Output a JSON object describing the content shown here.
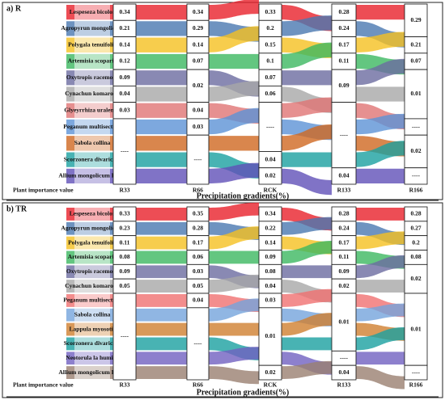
{
  "panels": [
    {
      "title": "a) R",
      "species": [
        "Lespeseza bicolor",
        "Agropyrun mongolicum",
        "Polygala tenuifolia",
        "Artemisia scoparia",
        "Oxytropis racemosa",
        "Cynachun komarovii",
        "Glyeyrrhiza uralensis",
        "Peganum multisectum",
        "Sabola collina",
        "Scorzonera divaricata",
        "Allium mongolicum Regel"
      ],
      "columns": [
        {
          "name": "R33",
          "values": [
            0.34,
            0.21,
            0.14,
            0.12,
            0.09,
            0.04,
            0.03,
            "----"
          ]
        },
        {
          "name": "R66",
          "values": [
            0.34,
            0.29,
            0.14,
            0.07,
            0.02,
            0.04,
            0.03,
            "----"
          ]
        },
        {
          "name": "RCK",
          "values": [
            0.33,
            0.2,
            0.15,
            0.1,
            0.07,
            0.06,
            "----",
            0.04,
            0.02
          ]
        },
        {
          "name": "R133",
          "values": [
            0.28,
            0.24,
            0.17,
            0.11,
            0.09,
            "----",
            0.04
          ]
        },
        {
          "name": "R166",
          "values": [
            0.29,
            0.21,
            0.07,
            0.01,
            "----",
            0.02,
            "----"
          ]
        }
      ],
      "y_label": "Plant importance value",
      "x_title": "Precipitation gradients(%)"
    },
    {
      "title": "b) TR",
      "species": [
        "Lespeseza bicolor",
        "Agropyrun mongolicum",
        "Polygala tenuifolia",
        "Artemisia scoparia",
        "Oxytropis racemosa",
        "Cynachun komarovii",
        "Peganum multisectum",
        "Sabola collina",
        "Lappula myosotis",
        "Scorzonera divaricata",
        "Neotorula la humilis",
        "Allium mongolicum Regel"
      ],
      "columns": [
        {
          "name": "R33",
          "values": [
            0.33,
            0.23,
            0.11,
            0.08,
            0.09,
            0.05,
            "----"
          ]
        },
        {
          "name": "R66",
          "values": [
            0.35,
            0.28,
            0.17,
            0.06,
            0.03,
            0.05,
            0.04,
            "----"
          ]
        },
        {
          "name": "RCK",
          "values": [
            0.34,
            0.22,
            0.14,
            0.09,
            0.08,
            0.04,
            0.03,
            0.01,
            0.02
          ]
        },
        {
          "name": "R133",
          "values": [
            0.28,
            0.24,
            0.17,
            0.11,
            0.09,
            0.02,
            0.01,
            "----",
            0.04
          ]
        },
        {
          "name": "R166",
          "values": [
            0.28,
            0.27,
            0.2,
            0.08,
            0.02,
            0.01,
            "----"
          ]
        }
      ],
      "y_label": "Plant importance value",
      "x_title": "Precipitation gradients(%)"
    }
  ]
}
